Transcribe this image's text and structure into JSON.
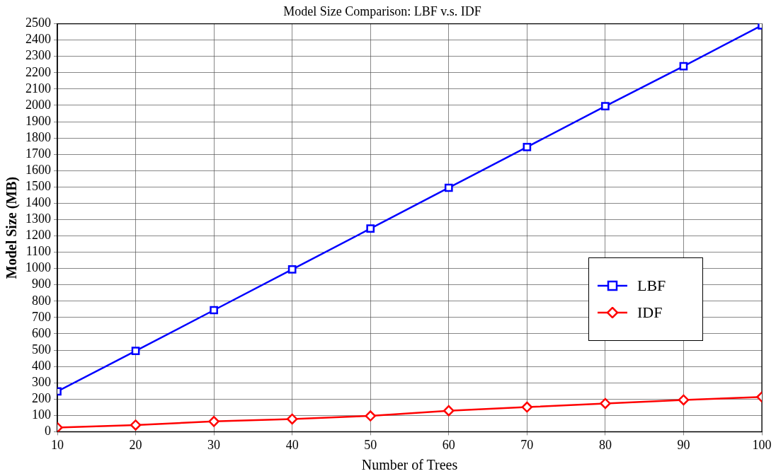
{
  "chart_data": {
    "type": "line",
    "title": "Model Size Comparison: LBF v.s. IDF",
    "xlabel": "Number of Trees",
    "ylabel": "Model Size (MB)",
    "x": [
      10,
      20,
      30,
      40,
      50,
      60,
      70,
      80,
      90,
      100
    ],
    "series": [
      {
        "name": "LBF",
        "color": "#0000ff",
        "marker": "square",
        "values": [
          247,
          495,
          745,
          995,
          1245,
          1495,
          1745,
          1995,
          2240,
          2490
        ]
      },
      {
        "name": "IDF",
        "color": "#ff0000",
        "marker": "diamond",
        "values": [
          26,
          41,
          63,
          78,
          97,
          129,
          151,
          173,
          195,
          213
        ]
      }
    ],
    "xlim": [
      10,
      100
    ],
    "xticks": [
      10,
      20,
      30,
      40,
      50,
      60,
      70,
      80,
      90,
      100
    ],
    "ylim": [
      0,
      2500
    ],
    "yticks": [
      0,
      100,
      200,
      300,
      400,
      500,
      600,
      700,
      800,
      900,
      1000,
      1100,
      1200,
      1300,
      1400,
      1500,
      1600,
      1700,
      1800,
      1900,
      2000,
      2100,
      2200,
      2300,
      2400,
      2500
    ],
    "grid": true,
    "legend": "right",
    "line_style": "solid"
  }
}
